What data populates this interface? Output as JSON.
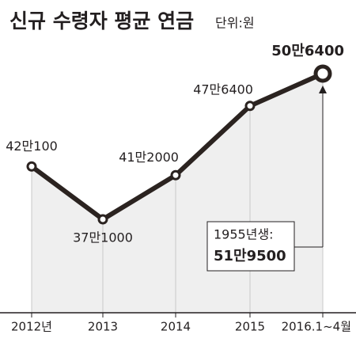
{
  "chart_data": {
    "type": "line",
    "title": "신규 수령자 평균 연금",
    "subtitle": "단위:원",
    "categories": [
      "2012년",
      "2013",
      "2014",
      "2015",
      "2016.1~4월"
    ],
    "values": [
      420100,
      371000,
      412000,
      476400,
      506400
    ],
    "value_labels": [
      "42만100",
      "37만1000",
      "41만2000",
      "47만6400",
      "50만6400"
    ],
    "color": "#2b2320",
    "annotation": {
      "label": "1955년생:",
      "value_label": "51만9500"
    }
  }
}
